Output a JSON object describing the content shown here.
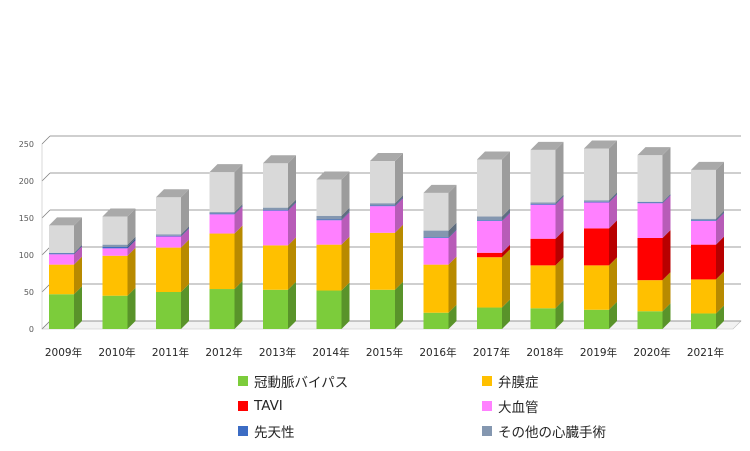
{
  "chart_data": {
    "type": "bar",
    "stacked": true,
    "three_d": true,
    "categories": [
      "2009年",
      "2010年",
      "2011年",
      "2012年",
      "2013年",
      "2014年",
      "2015年",
      "2016年",
      "2017年",
      "2018年",
      "2019年",
      "2020年",
      "2021年"
    ],
    "series": [
      {
        "name": "冠動脈バイパス",
        "color": "#7ccc3b",
        "values": [
          47,
          45,
          50,
          54,
          53,
          52,
          53,
          22,
          29,
          28,
          26,
          24,
          21
        ]
      },
      {
        "name": "弁膜症",
        "color": "#ffc000",
        "values": [
          40,
          54,
          60,
          75,
          60,
          62,
          77,
          65,
          68,
          58,
          60,
          42,
          46
        ]
      },
      {
        "name": "TAVI",
        "color": "#ff0000",
        "values": [
          0,
          0,
          0,
          0,
          0,
          0,
          0,
          0,
          6,
          36,
          50,
          57,
          47
        ]
      },
      {
        "name": "大血管",
        "color": "#ff80ff",
        "values": [
          14,
          10,
          15,
          26,
          47,
          33,
          36,
          36,
          43,
          46,
          35,
          47,
          32
        ]
      },
      {
        "name": "先天性",
        "color": "#3c6cc4",
        "values": [
          1,
          2,
          1,
          1,
          1,
          1,
          1,
          1,
          1,
          1,
          1,
          1,
          1
        ]
      },
      {
        "name": "その他の心臓手術",
        "color": "#8497b0",
        "values": [
          1,
          3,
          2,
          2,
          3,
          5,
          3,
          9,
          5,
          2,
          2,
          1,
          2
        ]
      }
    ],
    "top_color": "#d9d9d9",
    "top_values": [
      37,
      38,
      50,
      54,
      60,
      49,
      57,
      51,
      77,
      71,
      70,
      63,
      66
    ],
    "y_ticks": [
      0,
      50,
      100,
      150,
      200,
      250
    ],
    "ylim": [
      0,
      250
    ],
    "grid": true,
    "legend_position": "bottom"
  }
}
